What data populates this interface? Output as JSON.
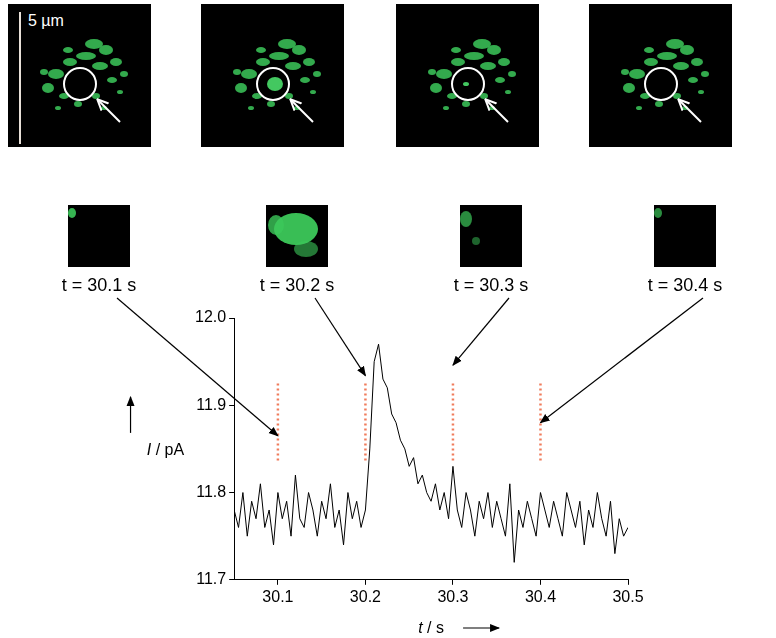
{
  "chart_data": {
    "type": "line",
    "x_label": "t / s",
    "y_label": "I / pA",
    "x": [
      30.05,
      30.055,
      30.06,
      30.065,
      30.07,
      30.075,
      30.08,
      30.085,
      30.09,
      30.095,
      30.1,
      30.105,
      30.11,
      30.115,
      30.12,
      30.125,
      30.13,
      30.135,
      30.14,
      30.145,
      30.15,
      30.155,
      30.16,
      30.165,
      30.17,
      30.175,
      30.18,
      30.185,
      30.19,
      30.195,
      30.2,
      30.205,
      30.21,
      30.215,
      30.22,
      30.225,
      30.23,
      30.235,
      30.24,
      30.245,
      30.25,
      30.255,
      30.26,
      30.265,
      30.27,
      30.275,
      30.28,
      30.285,
      30.29,
      30.295,
      30.3,
      30.305,
      30.31,
      30.315,
      30.32,
      30.325,
      30.33,
      30.335,
      30.34,
      30.345,
      30.35,
      30.355,
      30.36,
      30.365,
      30.37,
      30.375,
      30.38,
      30.385,
      30.39,
      30.395,
      30.4,
      30.405,
      30.41,
      30.415,
      30.42,
      30.425,
      30.43,
      30.435,
      30.44,
      30.445,
      30.45,
      30.455,
      30.46,
      30.465,
      30.47,
      30.475,
      30.48,
      30.485,
      30.49,
      30.495,
      30.5
    ],
    "values": [
      11.78,
      11.76,
      11.8,
      11.75,
      11.79,
      11.77,
      11.81,
      11.76,
      11.78,
      11.74,
      11.8,
      11.77,
      11.79,
      11.75,
      11.82,
      11.77,
      11.76,
      11.8,
      11.78,
      11.75,
      11.79,
      11.77,
      11.81,
      11.76,
      11.78,
      11.74,
      11.8,
      11.77,
      11.79,
      11.76,
      11.78,
      11.85,
      11.95,
      11.97,
      11.93,
      11.92,
      11.89,
      11.88,
      11.86,
      11.85,
      11.83,
      11.84,
      11.81,
      11.82,
      11.8,
      11.79,
      11.81,
      11.78,
      11.8,
      11.77,
      11.83,
      11.78,
      11.76,
      11.8,
      11.78,
      11.75,
      11.79,
      11.77,
      11.8,
      11.76,
      11.79,
      11.77,
      11.75,
      11.81,
      11.72,
      11.78,
      11.76,
      11.79,
      11.77,
      11.75,
      11.8,
      11.78,
      11.76,
      11.79,
      11.77,
      11.75,
      11.8,
      11.78,
      11.76,
      11.79,
      11.74,
      11.78,
      11.76,
      11.8,
      11.77,
      11.75,
      11.79,
      11.73,
      11.77,
      11.75,
      11.76
    ],
    "color": "#000000",
    "xlim": [
      30.05,
      30.5
    ],
    "ylim": [
      11.7,
      12.0
    ],
    "xticks": [
      30.1,
      30.2,
      30.3,
      30.4,
      30.5
    ],
    "yticks": [
      11.7,
      11.8,
      11.9,
      {
        "value": 12.0,
        "label": "12.0"
      }
    ],
    "grid": false,
    "vlines": {
      "values": [
        30.1,
        30.2,
        30.3,
        30.4
      ],
      "color": "#f07c5c",
      "line_style": "dotted"
    }
  },
  "figure": {
    "scale_bar": "5 µm",
    "frames": [
      "t = 30.1 s",
      "t = 30.2 s",
      "t = 30.3 s",
      "t = 30.4 s"
    ]
  }
}
